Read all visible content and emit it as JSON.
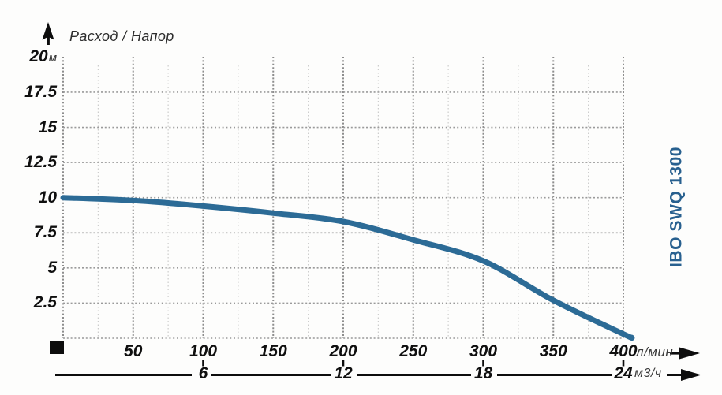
{
  "colors": {
    "curve": "#2c6b96",
    "brand": "#28608f",
    "grid_major": "#8d8d8d",
    "grid_minor": "#cccccc",
    "grid_h": "#9a9a9a",
    "axis_black": "#0d0d0d"
  },
  "header": {
    "title": "Расход / Напор"
  },
  "brand_label": "IBO SWQ 1300",
  "y_axis": {
    "top": {
      "value": "20",
      "unit": "м"
    },
    "labels": [
      "17.5",
      "15",
      "12.5",
      "10",
      "7.5",
      "5",
      "2.5"
    ]
  },
  "x_axis_lpm": {
    "labels": [
      "50",
      "100",
      "150",
      "200",
      "250",
      "300",
      "350",
      "400"
    ],
    "unit": "л/мин"
  },
  "x_axis_m3h": {
    "labels": [
      "6",
      "12",
      "18",
      "24"
    ],
    "unit": "м3/ч"
  },
  "chart_data": {
    "type": "line",
    "title": "Расход / Напор",
    "xlabel": "л/мин",
    "x2label": "м3/ч",
    "ylabel": "м",
    "xlim": [
      0,
      400
    ],
    "ylim": [
      0,
      20
    ],
    "x_ticks_lpm": [
      50,
      100,
      150,
      200,
      250,
      300,
      350,
      400
    ],
    "x2_ticks_m3h": [
      6,
      12,
      18,
      24
    ],
    "y_ticks": [
      2.5,
      5,
      7.5,
      10,
      12.5,
      15,
      17.5,
      20
    ],
    "grid": "dotted",
    "legend": "none",
    "series": [
      {
        "name": "IBO SWQ 1300",
        "x_lpm": [
          0,
          50,
          100,
          150,
          200,
          250,
          300,
          350,
          400,
          406
        ],
        "y_m": [
          10,
          9.8,
          9.4,
          8.9,
          8.3,
          7.0,
          5.5,
          2.7,
          0.3,
          0.05
        ]
      }
    ]
  }
}
